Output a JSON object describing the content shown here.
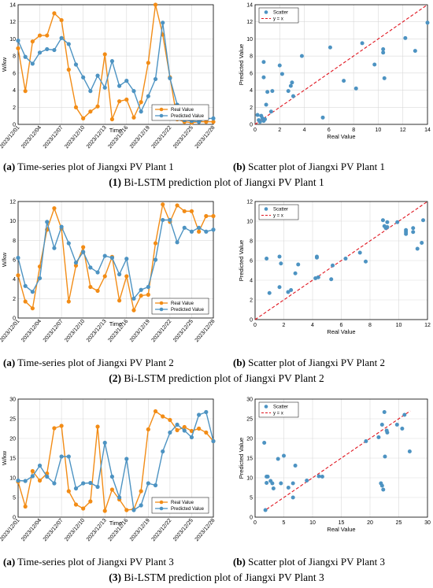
{
  "colors": {
    "real": "#f28c16",
    "predicted": "#4d93c2",
    "identity": "#e0141e",
    "grid": "#d9d9d9"
  },
  "rows": [
    {
      "ts_caption": {
        "label": "(a)",
        "text": " Time-series plot of Jiangxi PV Plant 1"
      },
      "sc_caption": {
        "label": "(b)",
        "text": " Scatter plot of Jiangxi PV Plant 1"
      },
      "row_caption": {
        "label": "(1)",
        "text": " Bi-LSTM prediction plot of Jiangxi PV Plant 1"
      }
    },
    {
      "ts_caption": {
        "label": "(a)",
        "text": " Time-series plot of Jiangxi PV Plant 2"
      },
      "sc_caption": {
        "label": "(b)",
        "text": " Scatter plot of Jiangxi PV Plant 2"
      },
      "row_caption": {
        "label": "(2)",
        "text": " Bi-LSTM prediction plot of Jiangxi PV Plant 2"
      }
    },
    {
      "ts_caption": {
        "label": "(a)",
        "text": " Time-series plot of Jiangxi PV Plant 3"
      },
      "sc_caption": {
        "label": "(b)",
        "text": " Scatter plot of Jiangxi PV Plant 3"
      },
      "row_caption": {
        "label": "(3)",
        "text": " Bi-LSTM prediction plot of Jiangxi PV Plant 3"
      }
    }
  ],
  "chart_data": [
    {
      "type": "line",
      "xlabel": "Time",
      "ylabel": "W/kw",
      "x": [
        "2023/12/01",
        "2023/12/02",
        "2023/12/03",
        "2023/12/04",
        "2023/12/05",
        "2023/12/06",
        "2023/12/07",
        "2023/12/08",
        "2023/12/09",
        "2023/12/10",
        "2023/12/11",
        "2023/12/12",
        "2023/12/13",
        "2023/12/14",
        "2023/12/15",
        "2023/12/16",
        "2023/12/17",
        "2023/12/18",
        "2023/12/19",
        "2023/12/20",
        "2023/12/21",
        "2023/12/22",
        "2023/12/23",
        "2023/12/24",
        "2023/12/25",
        "2023/12/26",
        "2023/12/27",
        "2023/12/28"
      ],
      "xticks": [
        "2023/12/01",
        "2023/12/04",
        "2023/12/07",
        "2023/12/10",
        "2023/12/13",
        "2023/12/16",
        "2023/12/19",
        "2023/12/22",
        "2023/12/25",
        "2023/12/28"
      ],
      "ylim": [
        0,
        14
      ],
      "yticks": [
        0,
        2,
        4,
        6,
        8,
        10,
        12,
        14
      ],
      "legend": "bottom-right",
      "series": [
        {
          "name": "Real Value",
          "values": [
            8.9,
            3.9,
            9.7,
            10.4,
            10.4,
            13.0,
            12.2,
            6.4,
            2.0,
            0.7,
            1.5,
            2.1,
            8.2,
            0.6,
            2.7,
            2.9,
            0.8,
            2.6,
            7.2,
            14.0,
            10.5,
            5.5,
            0.6,
            0.3,
            0.2,
            0.3,
            0.3,
            0.3
          ]
        },
        {
          "name": "Predicted Value",
          "values": [
            9.8,
            7.9,
            7.1,
            8.4,
            8.8,
            8.7,
            10.1,
            9.4,
            7.0,
            5.5,
            3.9,
            5.7,
            4.3,
            7.4,
            4.5,
            5.1,
            3.9,
            1.5,
            3.3,
            5.3,
            11.9,
            5.4,
            2.3,
            0.5,
            0.4,
            0.3,
            0.7,
            0.7
          ]
        }
      ]
    },
    {
      "type": "scatter",
      "xlabel": "Real Value",
      "ylabel": "Predicted Value",
      "xlim": [
        0,
        14
      ],
      "ylim": [
        0,
        14
      ],
      "xticks": [
        0,
        2,
        4,
        6,
        8,
        10,
        12,
        14
      ],
      "yticks": [
        0,
        2,
        4,
        6,
        8,
        10,
        12,
        14
      ],
      "legend": "top-left",
      "series": [
        {
          "name": "Scatter",
          "points": [
            [
              0.2,
              1.1
            ],
            [
              0.3,
              0.5
            ],
            [
              0.4,
              0.3
            ],
            [
              0.5,
              1.0
            ],
            [
              0.6,
              0.7
            ],
            [
              0.7,
              0.4
            ],
            [
              0.8,
              0.6
            ],
            [
              0.9,
              2.3
            ],
            [
              1.0,
              3.8
            ],
            [
              1.3,
              1.5
            ],
            [
              0.7,
              7.3
            ],
            [
              0.7,
              5.5
            ],
            [
              1.4,
              3.9
            ],
            [
              2.0,
              6.9
            ],
            [
              2.2,
              5.9
            ],
            [
              2.9,
              4.5
            ],
            [
              2.7,
              3.9
            ],
            [
              3.0,
              4.9
            ],
            [
              3.1,
              3.3
            ],
            [
              3.8,
              8.0
            ],
            [
              5.5,
              0.8
            ],
            [
              6.1,
              9.0
            ],
            [
              7.2,
              5.1
            ],
            [
              8.2,
              4.2
            ],
            [
              8.7,
              9.5
            ],
            [
              9.7,
              7.0
            ],
            [
              10.4,
              8.8
            ],
            [
              10.4,
              8.4
            ],
            [
              10.5,
              5.4
            ],
            [
              12.2,
              10.1
            ],
            [
              13.0,
              8.6
            ],
            [
              14.0,
              11.9
            ]
          ]
        },
        {
          "name": "y = x",
          "line": [
            [
              0,
              0
            ],
            [
              14,
              14
            ]
          ]
        }
      ]
    },
    {
      "type": "line",
      "xlabel": "Time",
      "ylabel": "W/kw",
      "x": [
        "2023/12/01",
        "2023/12/02",
        "2023/12/03",
        "2023/12/04",
        "2023/12/05",
        "2023/12/06",
        "2023/12/07",
        "2023/12/08",
        "2023/12/09",
        "2023/12/10",
        "2023/12/11",
        "2023/12/12",
        "2023/12/13",
        "2023/12/14",
        "2023/12/15",
        "2023/12/16",
        "2023/12/17",
        "2023/12/18",
        "2023/12/19",
        "2023/12/20",
        "2023/12/21",
        "2023/12/22",
        "2023/12/23",
        "2023/12/24",
        "2023/12/25",
        "2023/12/26",
        "2023/12/27",
        "2023/12/28"
      ],
      "xticks": [
        "2023/12/01",
        "2023/12/04",
        "2023/12/07",
        "2023/12/10",
        "2023/12/13",
        "2023/12/16",
        "2023/12/19",
        "2023/12/22",
        "2023/12/25",
        "2023/12/28"
      ],
      "ylim": [
        0,
        12
      ],
      "yticks": [
        0,
        2,
        4,
        6,
        8,
        10,
        12
      ],
      "legend": "bottom-right",
      "series": [
        {
          "name": "Real Value",
          "values": [
            4.4,
            1.7,
            1.0,
            5.3,
            9.1,
            11.3,
            9.2,
            1.7,
            5.4,
            7.3,
            3.2,
            2.8,
            4.3,
            6.3,
            1.8,
            4.3,
            0.8,
            2.3,
            2.4,
            7.7,
            11.7,
            9.9,
            11.6,
            11.0,
            11.0,
            8.9,
            10.5,
            10.5
          ]
        },
        {
          "name": "Predicted Value",
          "values": [
            6.2,
            3.3,
            2.7,
            4.1,
            9.9,
            7.2,
            9.4,
            7.7,
            5.7,
            6.8,
            5.2,
            4.7,
            6.4,
            6.2,
            4.5,
            6.1,
            2.0,
            2.9,
            3.2,
            6.0,
            10.1,
            10.1,
            7.8,
            9.3,
            8.9,
            9.3,
            8.9,
            9.1
          ]
        }
      ]
    },
    {
      "type": "scatter",
      "xlabel": "Real Value",
      "ylabel": "Predicted Value",
      "xlim": [
        0,
        12
      ],
      "ylim": [
        0,
        12
      ],
      "xticks": [
        0,
        2,
        4,
        6,
        8,
        10,
        12
      ],
      "yticks": [
        0,
        2,
        4,
        6,
        8,
        10,
        12
      ],
      "legend": "top-left",
      "series": [
        {
          "name": "Scatter",
          "points": [
            [
              0.8,
              6.2
            ],
            [
              1.0,
              2.7
            ],
            [
              1.7,
              3.3
            ],
            [
              1.7,
              6.4
            ],
            [
              1.8,
              5.7
            ],
            [
              2.3,
              2.8
            ],
            [
              2.5,
              3.0
            ],
            [
              2.8,
              4.7
            ],
            [
              3.0,
              5.6
            ],
            [
              4.3,
              6.4
            ],
            [
              4.3,
              6.3
            ],
            [
              4.2,
              4.2
            ],
            [
              4.4,
              4.3
            ],
            [
              5.3,
              4.1
            ],
            [
              5.4,
              5.5
            ],
            [
              6.3,
              6.2
            ],
            [
              7.3,
              6.8
            ],
            [
              7.7,
              5.9
            ],
            [
              9.1,
              9.3
            ],
            [
              8.9,
              10.1
            ],
            [
              9.2,
              9.9
            ],
            [
              9.0,
              9.5
            ],
            [
              9.2,
              9.4
            ],
            [
              9.9,
              9.9
            ],
            [
              10.5,
              8.9
            ],
            [
              10.5,
              9.1
            ],
            [
              10.5,
              8.7
            ],
            [
              11.0,
              9.3
            ],
            [
              11.0,
              8.9
            ],
            [
              11.3,
              7.2
            ],
            [
              11.6,
              7.8
            ],
            [
              11.7,
              10.1
            ]
          ]
        },
        {
          "name": "y = x",
          "line": [
            [
              0,
              0
            ],
            [
              12,
              12
            ]
          ]
        }
      ]
    },
    {
      "type": "line",
      "xlabel": "Time",
      "ylabel": "W/kw",
      "x": [
        "2023/12/01",
        "2023/12/02",
        "2023/12/03",
        "2023/12/04",
        "2023/12/05",
        "2023/12/06",
        "2023/12/07",
        "2023/12/08",
        "2023/12/09",
        "2023/12/10",
        "2023/12/11",
        "2023/12/12",
        "2023/12/13",
        "2023/12/14",
        "2023/12/15",
        "2023/12/16",
        "2023/12/17",
        "2023/12/18",
        "2023/12/19",
        "2023/12/20",
        "2023/12/21",
        "2023/12/22",
        "2023/12/23",
        "2023/12/24",
        "2023/12/25",
        "2023/12/26",
        "2023/12/27",
        "2023/12/28"
      ],
      "xticks": [
        "2023/12/01",
        "2023/12/04",
        "2023/12/07",
        "2023/12/10",
        "2023/12/13",
        "2023/12/16",
        "2023/12/19",
        "2023/12/22",
        "2023/12/25",
        "2023/12/28"
      ],
      "ylim": [
        0,
        30
      ],
      "yticks": [
        0,
        5,
        10,
        15,
        20,
        25,
        30
      ],
      "legend": "bottom-right",
      "series": [
        {
          "name": "Real Value",
          "values": [
            9.0,
            2.7,
            11.7,
            9.3,
            11.1,
            22.6,
            23.2,
            6.6,
            3.2,
            2.2,
            4.0,
            23.0,
            1.6,
            7.0,
            4.5,
            1.8,
            2.0,
            6.6,
            22.3,
            26.9,
            25.6,
            24.7,
            22.1,
            22.9,
            21.9,
            22.5,
            21.5,
            19.3
          ]
        },
        {
          "name": "Predicted Value",
          "values": [
            9.3,
            9.2,
            10.4,
            13.1,
            10.3,
            8.6,
            15.4,
            15.4,
            7.3,
            8.6,
            8.7,
            7.7,
            18.9,
            10.3,
            5.0,
            14.8,
            1.8,
            3.0,
            8.6,
            8.1,
            16.7,
            21.5,
            23.5,
            22.0,
            20.3,
            26.0,
            26.7,
            19.3
          ]
        }
      ]
    },
    {
      "type": "scatter",
      "xlabel": "Real Value",
      "ylabel": "Predicted Value",
      "xlim": [
        0,
        30
      ],
      "ylim": [
        0,
        30
      ],
      "xticks": [
        0,
        5,
        10,
        15,
        20,
        25,
        30
      ],
      "yticks": [
        0,
        5,
        10,
        15,
        20,
        25,
        30
      ],
      "legend": "top-left",
      "series": [
        {
          "name": "Scatter",
          "points": [
            [
              1.6,
              18.9
            ],
            [
              1.8,
              1.8
            ],
            [
              2.0,
              10.3
            ],
            [
              2.0,
              8.7
            ],
            [
              2.2,
              10.3
            ],
            [
              2.7,
              9.2
            ],
            [
              3.0,
              8.6
            ],
            [
              3.2,
              7.3
            ],
            [
              4.0,
              14.8
            ],
            [
              4.5,
              8.6
            ],
            [
              5.0,
              15.6
            ],
            [
              5.8,
              7.5
            ],
            [
              6.6,
              5.0
            ],
            [
              6.6,
              8.6
            ],
            [
              7.0,
              13.1
            ],
            [
              9.0,
              9.3
            ],
            [
              11.1,
              10.4
            ],
            [
              11.7,
              10.3
            ],
            [
              19.3,
              19.3
            ],
            [
              21.5,
              20.3
            ],
            [
              21.9,
              8.6
            ],
            [
              22.1,
              8.0
            ],
            [
              22.1,
              23.5
            ],
            [
              22.3,
              7.0
            ],
            [
              22.5,
              26.7
            ],
            [
              22.6,
              15.4
            ],
            [
              22.9,
              22.0
            ],
            [
              23.0,
              21.5
            ],
            [
              24.7,
              23.5
            ],
            [
              25.6,
              22.5
            ],
            [
              26.9,
              16.7
            ],
            [
              26.0,
              26.0
            ]
          ]
        },
        {
          "name": "y = x",
          "line": [
            [
              2,
              2
            ],
            [
              27,
              27
            ]
          ]
        }
      ]
    }
  ]
}
